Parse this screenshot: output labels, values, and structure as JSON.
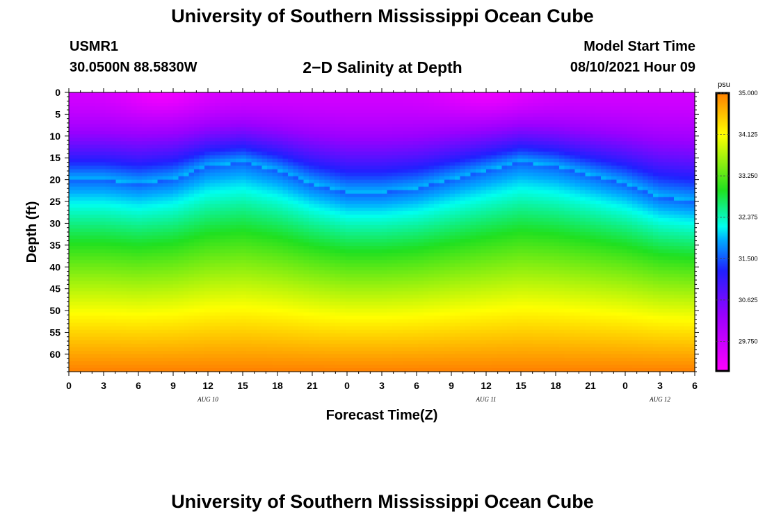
{
  "header": {
    "title": "University of Southern Mississippi Ocean Cube",
    "station_id": "USMR1",
    "coordinates": "30.0500N  88.5830W",
    "plot_title": "2−D Salinity at Depth",
    "model_start_label": "Model Start Time",
    "model_start_value": "08/10/2021 Hour 09"
  },
  "footer": {
    "title": "University of Southern Mississippi Ocean Cube"
  },
  "chart_data": {
    "type": "heatmap",
    "title": "2-D Salinity at Depth",
    "xlabel": "Forecast Time(Z)",
    "ylabel": "Depth (ft)",
    "x_hours": [
      0,
      3,
      6,
      9,
      12,
      15,
      18,
      21,
      24,
      27,
      30,
      33,
      36,
      39,
      42,
      45,
      48,
      51,
      54
    ],
    "x_tick_labels": [
      "0",
      "3",
      "6",
      "9",
      "12",
      "15",
      "18",
      "21",
      "0",
      "3",
      "6",
      "9",
      "12",
      "15",
      "18",
      "21",
      "0",
      "3",
      "6"
    ],
    "date_labels": [
      {
        "label": "AUG 10",
        "hour": 12
      },
      {
        "label": "AUG 11",
        "hour": 36
      },
      {
        "label": "AUG 12",
        "hour": 51
      }
    ],
    "y_ticks": [
      0,
      5,
      10,
      15,
      20,
      25,
      30,
      35,
      40,
      45,
      50,
      55,
      60
    ],
    "ylim": [
      0,
      64
    ],
    "xlim": [
      0,
      54
    ],
    "colorbar": {
      "unit": "psu",
      "min": 29.125,
      "max": 35.0,
      "tick_values": [
        35.0,
        34.125,
        33.25,
        32.375,
        31.5,
        30.625,
        29.75
      ],
      "tick_labels": [
        "35.000",
        "34.125",
        "33.250",
        "32.375",
        "31.500",
        "30.625",
        "29.750"
      ]
    },
    "halocline_depth_ft": [
      {
        "hour": 0,
        "depth": 20
      },
      {
        "hour": 3,
        "depth": 20
      },
      {
        "hour": 6,
        "depth": 21
      },
      {
        "hour": 9,
        "depth": 20
      },
      {
        "hour": 12,
        "depth": 17
      },
      {
        "hour": 15,
        "depth": 16
      },
      {
        "hour": 18,
        "depth": 18
      },
      {
        "hour": 21,
        "depth": 21
      },
      {
        "hour": 24,
        "depth": 23
      },
      {
        "hour": 27,
        "depth": 23
      },
      {
        "hour": 30,
        "depth": 22
      },
      {
        "hour": 33,
        "depth": 20
      },
      {
        "hour": 36,
        "depth": 18
      },
      {
        "hour": 39,
        "depth": 16
      },
      {
        "hour": 42,
        "depth": 17
      },
      {
        "hour": 45,
        "depth": 19
      },
      {
        "hour": 48,
        "depth": 21
      },
      {
        "hour": 51,
        "depth": 24
      },
      {
        "hour": 54,
        "depth": 25
      }
    ],
    "surface_salinity_psu": 29.2,
    "bottom_salinity_psu": 35.0
  }
}
